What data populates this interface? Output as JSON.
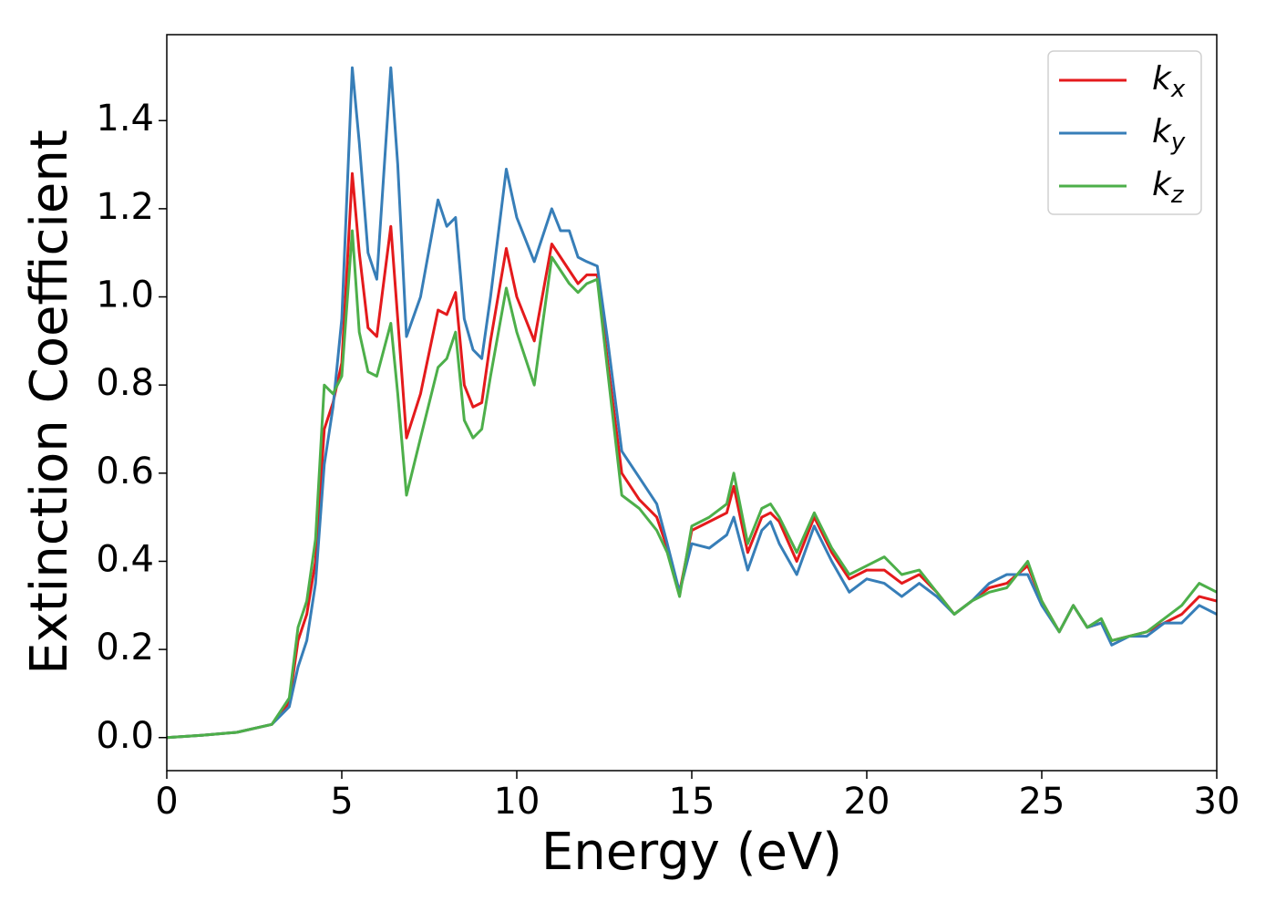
{
  "chart_data": {
    "type": "line",
    "xlabel": "Energy (eV)",
    "ylabel": "Extinction Coefficient",
    "x": [
      0,
      1,
      2,
      3,
      3.5,
      3.75,
      4,
      4.25,
      4.5,
      4.75,
      5,
      5.3,
      5.5,
      5.75,
      6,
      6.4,
      6.6,
      6.85,
      7.25,
      7.75,
      8,
      8.25,
      8.5,
      8.75,
      9,
      9.25,
      9.7,
      10,
      10.5,
      11,
      11.25,
      11.5,
      11.75,
      12,
      12.3,
      12.6,
      13,
      13.5,
      14,
      14.3,
      14.65,
      15,
      15.5,
      16,
      16.2,
      16.6,
      17,
      17.25,
      17.5,
      18,
      18.5,
      19,
      19.5,
      20,
      20.5,
      21,
      21.5,
      22,
      22.5,
      23,
      23.5,
      24,
      24.6,
      25,
      25.5,
      25.9,
      26.3,
      26.7,
      27,
      27.5,
      28,
      28.5,
      29,
      29.5,
      30
    ],
    "series": [
      {
        "name": "kx",
        "color": "#e41a1c",
        "values": [
          0,
          0.005,
          0.012,
          0.03,
          0.08,
          0.22,
          0.28,
          0.4,
          0.7,
          0.76,
          0.85,
          1.28,
          1.1,
          0.93,
          0.91,
          1.16,
          0.95,
          0.68,
          0.78,
          0.97,
          0.96,
          1.01,
          0.8,
          0.75,
          0.76,
          0.9,
          1.11,
          1.0,
          0.9,
          1.12,
          1.09,
          1.06,
          1.03,
          1.05,
          1.05,
          0.85,
          0.6,
          0.54,
          0.5,
          0.43,
          0.33,
          0.47,
          0.49,
          0.51,
          0.57,
          0.42,
          0.5,
          0.51,
          0.49,
          0.4,
          0.5,
          0.42,
          0.36,
          0.38,
          0.38,
          0.35,
          0.37,
          0.33,
          0.28,
          0.31,
          0.34,
          0.35,
          0.39,
          0.31,
          0.24,
          0.3,
          0.25,
          0.26,
          0.22,
          0.23,
          0.24,
          0.26,
          0.28,
          0.32,
          0.31
        ]
      },
      {
        "name": "ky",
        "color": "#377eb8",
        "values": [
          0,
          0.005,
          0.012,
          0.03,
          0.07,
          0.16,
          0.22,
          0.35,
          0.62,
          0.75,
          0.95,
          1.52,
          1.35,
          1.1,
          1.04,
          1.52,
          1.3,
          0.91,
          1.0,
          1.22,
          1.16,
          1.18,
          0.95,
          0.88,
          0.86,
          1.0,
          1.29,
          1.18,
          1.08,
          1.2,
          1.15,
          1.15,
          1.09,
          1.08,
          1.07,
          0.9,
          0.65,
          0.59,
          0.53,
          0.44,
          0.33,
          0.44,
          0.43,
          0.46,
          0.5,
          0.38,
          0.47,
          0.49,
          0.44,
          0.37,
          0.48,
          0.4,
          0.33,
          0.36,
          0.35,
          0.32,
          0.35,
          0.32,
          0.28,
          0.31,
          0.35,
          0.37,
          0.37,
          0.3,
          0.24,
          0.3,
          0.25,
          0.26,
          0.21,
          0.23,
          0.23,
          0.26,
          0.26,
          0.3,
          0.28
        ]
      },
      {
        "name": "kz",
        "color": "#4daf4a",
        "values": [
          0,
          0.005,
          0.012,
          0.03,
          0.09,
          0.25,
          0.31,
          0.45,
          0.8,
          0.78,
          0.82,
          1.15,
          0.92,
          0.83,
          0.82,
          0.94,
          0.78,
          0.55,
          0.68,
          0.84,
          0.86,
          0.92,
          0.72,
          0.68,
          0.7,
          0.82,
          1.02,
          0.92,
          0.8,
          1.09,
          1.06,
          1.03,
          1.01,
          1.03,
          1.04,
          0.83,
          0.55,
          0.52,
          0.47,
          0.42,
          0.32,
          0.48,
          0.5,
          0.53,
          0.6,
          0.44,
          0.52,
          0.53,
          0.5,
          0.42,
          0.51,
          0.43,
          0.37,
          0.39,
          0.41,
          0.37,
          0.38,
          0.33,
          0.28,
          0.31,
          0.33,
          0.34,
          0.4,
          0.31,
          0.24,
          0.3,
          0.25,
          0.27,
          0.22,
          0.23,
          0.24,
          0.27,
          0.3,
          0.35,
          0.33
        ]
      }
    ],
    "xlim": [
      0,
      30
    ],
    "xticks": [
      0,
      5,
      10,
      15,
      20,
      25,
      30
    ],
    "ylim": [
      -0.075,
      1.595
    ],
    "yticks": [
      {
        "value": 0,
        "label": "0.0"
      },
      0.2,
      0.4,
      0.6,
      0.8,
      {
        "value": 1,
        "label": "1.0"
      },
      1.2,
      1.4
    ],
    "grid": false,
    "legend": "upper right"
  }
}
